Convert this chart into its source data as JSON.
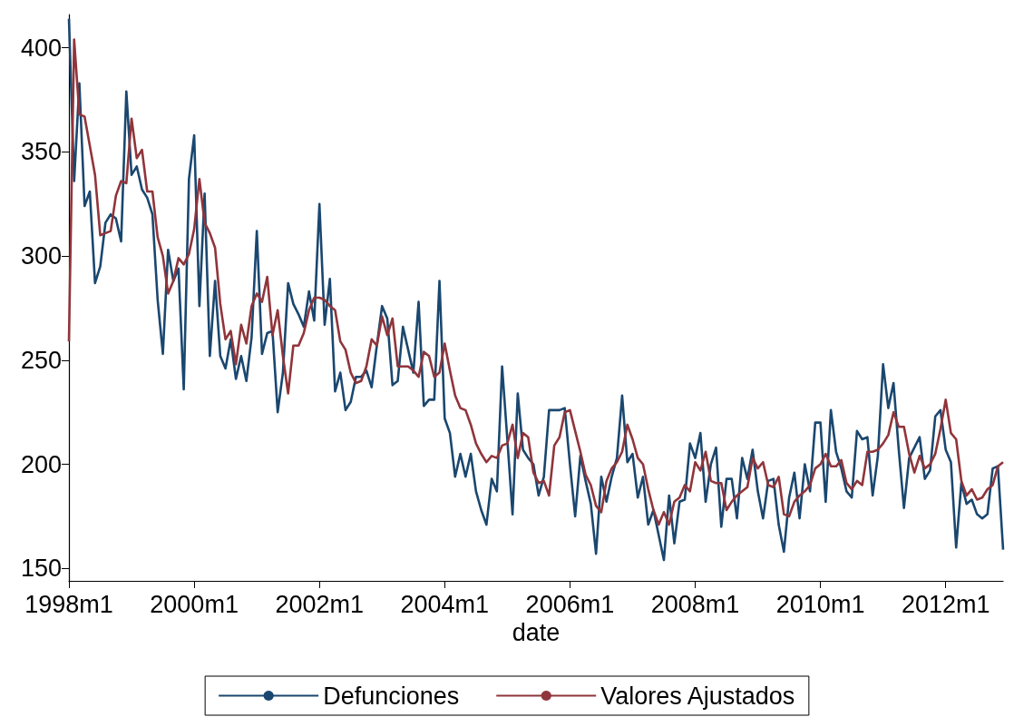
{
  "chart_data": {
    "type": "line",
    "xlabel": "date",
    "categories": [
      "1998m1",
      null,
      null,
      null,
      null,
      null,
      null,
      null,
      null,
      null,
      null,
      null,
      null,
      null,
      null,
      null,
      null,
      null,
      null,
      null,
      null,
      null,
      null,
      null,
      "2000m1",
      null,
      null,
      null,
      null,
      null,
      null,
      null,
      null,
      null,
      null,
      null,
      null,
      null,
      null,
      null,
      null,
      null,
      null,
      null,
      null,
      null,
      null,
      null,
      "2002m1",
      null,
      null,
      null,
      null,
      null,
      null,
      null,
      null,
      null,
      null,
      null,
      null,
      null,
      null,
      null,
      null,
      null,
      null,
      null,
      null,
      null,
      null,
      null,
      "2004m1",
      null,
      null,
      null,
      null,
      null,
      null,
      null,
      null,
      null,
      null,
      null,
      null,
      null,
      null,
      null,
      null,
      null,
      null,
      null,
      null,
      null,
      null,
      null,
      "2006m1",
      null,
      null,
      null,
      null,
      null,
      null,
      null,
      null,
      null,
      null,
      null,
      null,
      null,
      null,
      null,
      null,
      null,
      null,
      null,
      null,
      null,
      null,
      null,
      "2008m1",
      null,
      null,
      null,
      null,
      null,
      null,
      null,
      null,
      null,
      null,
      null,
      null,
      null,
      null,
      null,
      null,
      null,
      null,
      null,
      null,
      null,
      null,
      null,
      "2010m1",
      null,
      null,
      null,
      null,
      null,
      null,
      null,
      null,
      null,
      null,
      null,
      null,
      null,
      null,
      null,
      null,
      null,
      null,
      null,
      null,
      null,
      null,
      null,
      "2012m1",
      null,
      null,
      null,
      null,
      null,
      null,
      null,
      null,
      null,
      null,
      null
    ],
    "series": [
      {
        "name": "Defunciones",
        "color": "#1a476f",
        "values": [
          414,
          336,
          383,
          324,
          331,
          287,
          295,
          316,
          320,
          318,
          307,
          379,
          339,
          343,
          332,
          328,
          320,
          279,
          253,
          303,
          288,
          294,
          236,
          337,
          358,
          276,
          330,
          252,
          288,
          252,
          246,
          260,
          241,
          252,
          240,
          261,
          312,
          253,
          263,
          264,
          225,
          244,
          287,
          277,
          272,
          266,
          283,
          269,
          325,
          267,
          289,
          235,
          244,
          226,
          230,
          242,
          242,
          245,
          237,
          257,
          276,
          270,
          238,
          240,
          266,
          255,
          244,
          278,
          228,
          231,
          231,
          288,
          222,
          215,
          194,
          205,
          194,
          205,
          187,
          178,
          171,
          193,
          187,
          247,
          212,
          176,
          234,
          207,
          203,
          200,
          185,
          194,
          226,
          226,
          226,
          227,
          200,
          175,
          204,
          192,
          181,
          157,
          194,
          182,
          194,
          203,
          233,
          201,
          205,
          184,
          194,
          171,
          178,
          166,
          154,
          185,
          162,
          182,
          183,
          210,
          203,
          215,
          182,
          200,
          208,
          170,
          193,
          193,
          174,
          203,
          193,
          207,
          187,
          174,
          192,
          193,
          171,
          158,
          184,
          196,
          174,
          200,
          187,
          220,
          220,
          182,
          226,
          206,
          198,
          187,
          184,
          216,
          212,
          213,
          185,
          204,
          248,
          227,
          239,
          207,
          179,
          203,
          208,
          213,
          193,
          197,
          223,
          226,
          207,
          201,
          160,
          191,
          181,
          183,
          176,
          174,
          176,
          198,
          199,
          159
        ]
      },
      {
        "name": "Valores Ajustados",
        "color": "#90353b",
        "values": [
          259,
          404,
          368,
          367,
          353,
          339,
          310,
          311,
          312,
          329,
          336,
          335,
          366,
          347,
          351,
          331,
          331,
          309,
          300,
          282,
          288,
          299,
          296,
          301,
          313,
          337,
          316,
          311,
          304,
          277,
          260,
          264,
          248,
          267,
          258,
          276,
          282,
          278,
          290,
          262,
          274,
          252,
          234,
          257,
          257,
          263,
          274,
          280,
          280,
          279,
          276,
          274,
          259,
          255,
          244,
          239,
          240,
          247,
          260,
          257,
          271,
          262,
          270,
          247,
          247,
          247,
          245,
          242,
          254,
          252,
          242,
          244,
          258,
          245,
          233,
          227,
          226,
          219,
          210,
          205,
          201,
          204,
          203,
          209,
          210,
          219,
          203,
          215,
          213,
          196,
          191,
          192,
          185,
          209,
          213,
          225,
          226,
          216,
          206,
          195,
          190,
          180,
          177,
          192,
          198,
          201,
          206,
          219,
          212,
          203,
          200,
          188,
          178,
          171,
          177,
          171,
          182,
          184,
          190,
          187,
          201,
          197,
          206,
          192,
          191,
          191,
          178,
          182,
          185,
          187,
          189,
          203,
          198,
          201,
          190,
          189,
          194,
          176,
          175,
          182,
          185,
          187,
          190,
          198,
          200,
          205,
          199,
          199,
          202,
          191,
          188,
          192,
          190,
          206,
          206,
          207,
          210,
          214,
          225,
          218,
          218,
          205,
          196,
          204,
          198,
          200,
          205,
          217,
          231,
          215,
          212,
          192,
          185,
          188,
          183,
          184,
          188,
          190,
          199,
          201
        ]
      }
    ],
    "ylim": [
      144,
      416
    ],
    "yticks": [
      150,
      200,
      250,
      300,
      350,
      400
    ],
    "grid": false,
    "legend": "bottom",
    "marker": "none"
  }
}
